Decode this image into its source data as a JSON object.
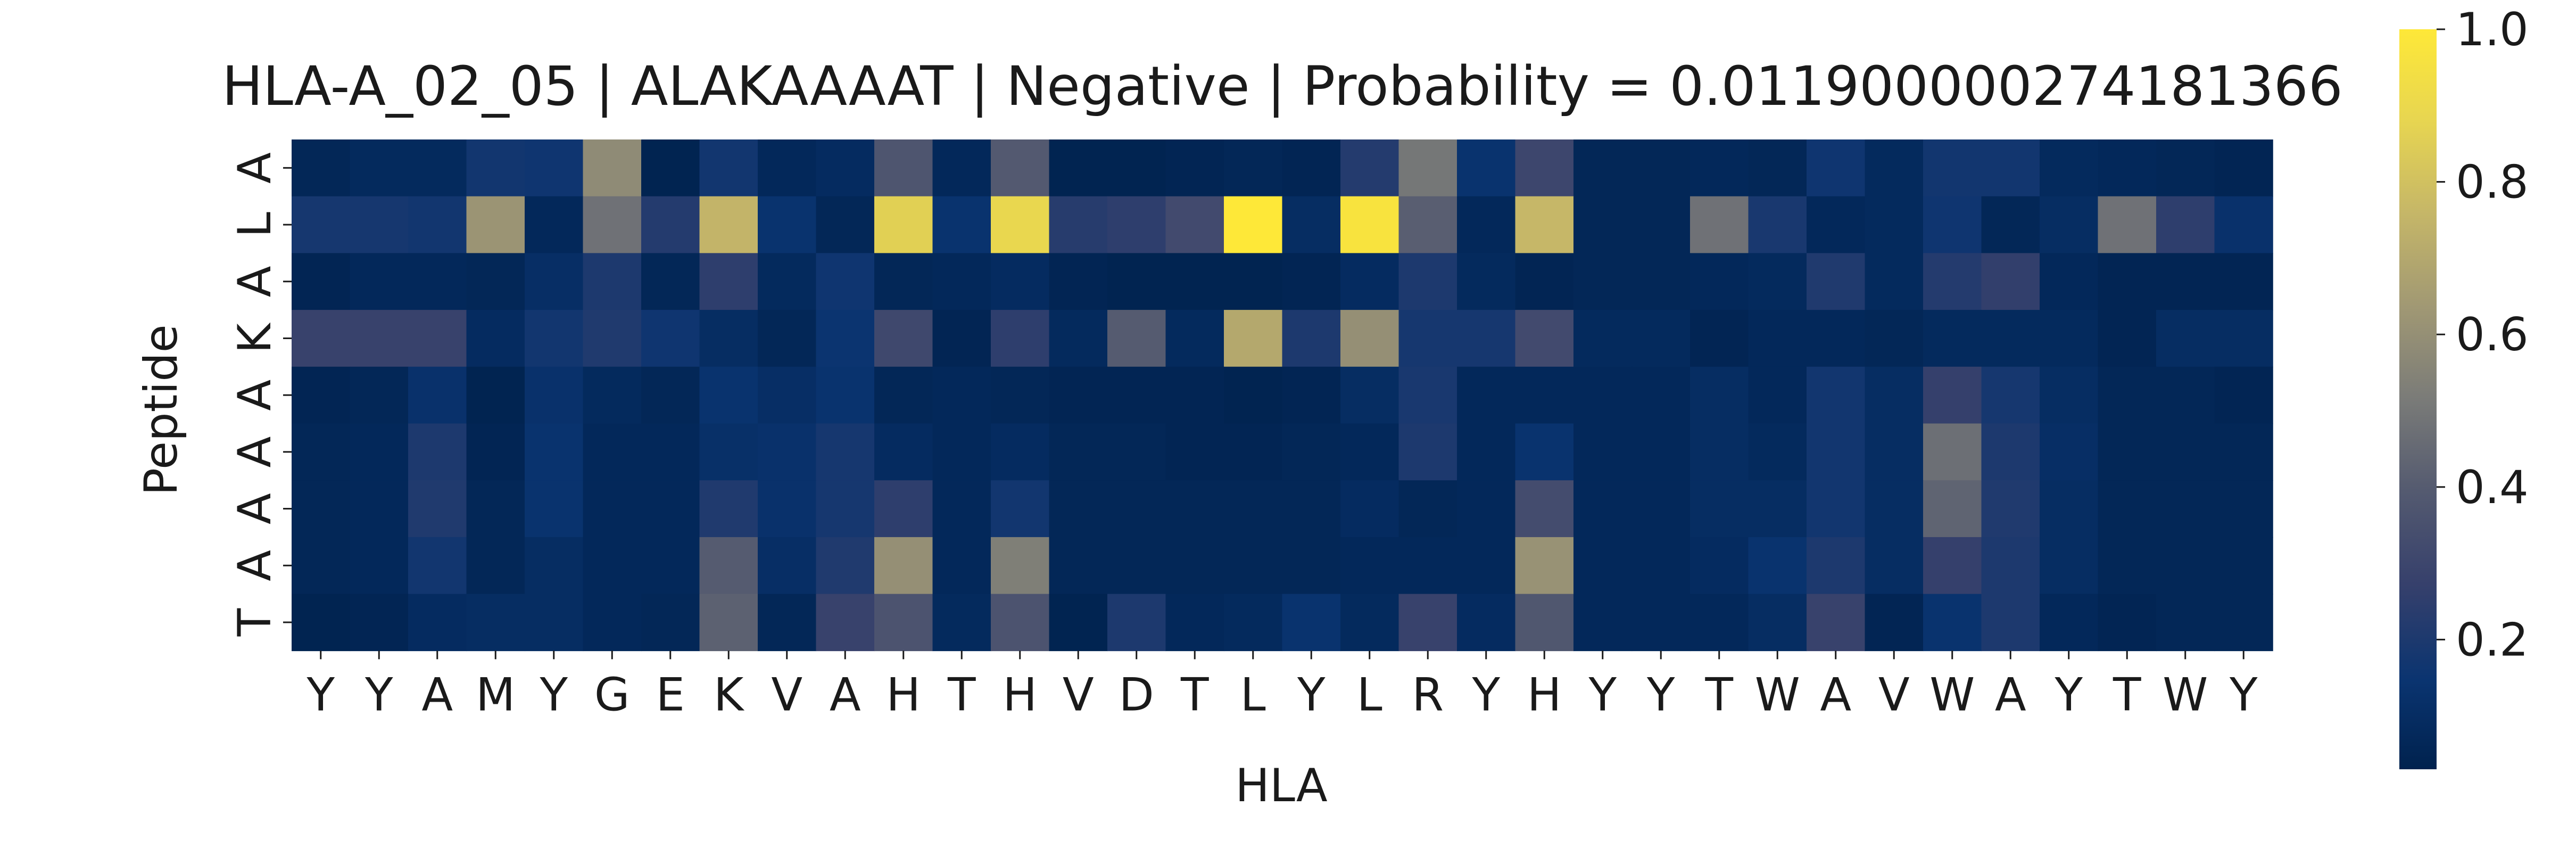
{
  "chart_data": {
    "type": "heatmap",
    "title": "HLA-A_02_05 | ALAKAAAAT | Negative | Probability = 0.011900000274181366",
    "xlabel": "HLA",
    "ylabel": "Peptide",
    "x_ticklabels": [
      "Y",
      "Y",
      "A",
      "M",
      "Y",
      "G",
      "E",
      "K",
      "V",
      "A",
      "H",
      "T",
      "H",
      "V",
      "D",
      "T",
      "L",
      "Y",
      "L",
      "R",
      "Y",
      "H",
      "Y",
      "Y",
      "T",
      "W",
      "A",
      "V",
      "W",
      "A",
      "Y",
      "T",
      "W",
      "Y"
    ],
    "y_ticklabels": [
      "A",
      "L",
      "A",
      "K",
      "A",
      "A",
      "A",
      "A",
      "T"
    ],
    "colormap": "cividis",
    "colorbar": {
      "min": 0.03,
      "max": 1.0,
      "ticks": [
        0.2,
        0.4,
        0.6,
        0.8,
        1.0
      ]
    },
    "values": [
      [
        0.06,
        0.08,
        0.08,
        0.17,
        0.16,
        0.58,
        0.04,
        0.17,
        0.07,
        0.09,
        0.37,
        0.07,
        0.39,
        0.04,
        0.04,
        0.05,
        0.06,
        0.05,
        0.22,
        0.5,
        0.14,
        0.3,
        0.06,
        0.06,
        0.07,
        0.06,
        0.16,
        0.08,
        0.17,
        0.17,
        0.08,
        0.07,
        0.06,
        0.05
      ],
      [
        0.18,
        0.18,
        0.17,
        0.62,
        0.07,
        0.48,
        0.22,
        0.75,
        0.14,
        0.06,
        0.86,
        0.14,
        0.89,
        0.23,
        0.25,
        0.32,
        1.0,
        0.1,
        0.97,
        0.41,
        0.07,
        0.76,
        0.06,
        0.06,
        0.48,
        0.19,
        0.07,
        0.08,
        0.16,
        0.06,
        0.1,
        0.48,
        0.25,
        0.13
      ],
      [
        0.05,
        0.07,
        0.07,
        0.06,
        0.11,
        0.2,
        0.06,
        0.25,
        0.08,
        0.16,
        0.06,
        0.07,
        0.09,
        0.05,
        0.04,
        0.04,
        0.04,
        0.05,
        0.09,
        0.2,
        0.08,
        0.05,
        0.06,
        0.06,
        0.07,
        0.08,
        0.21,
        0.08,
        0.22,
        0.26,
        0.07,
        0.05,
        0.05,
        0.05
      ],
      [
        0.28,
        0.28,
        0.28,
        0.09,
        0.17,
        0.21,
        0.16,
        0.1,
        0.06,
        0.15,
        0.31,
        0.05,
        0.25,
        0.08,
        0.4,
        0.08,
        0.7,
        0.2,
        0.6,
        0.18,
        0.18,
        0.32,
        0.08,
        0.08,
        0.05,
        0.07,
        0.07,
        0.06,
        0.08,
        0.08,
        0.08,
        0.05,
        0.1,
        0.1
      ],
      [
        0.05,
        0.06,
        0.13,
        0.04,
        0.13,
        0.08,
        0.06,
        0.14,
        0.11,
        0.14,
        0.06,
        0.07,
        0.06,
        0.05,
        0.05,
        0.05,
        0.04,
        0.05,
        0.1,
        0.19,
        0.07,
        0.07,
        0.07,
        0.07,
        0.1,
        0.07,
        0.17,
        0.1,
        0.27,
        0.18,
        0.1,
        0.06,
        0.06,
        0.05
      ],
      [
        0.06,
        0.07,
        0.2,
        0.05,
        0.14,
        0.07,
        0.07,
        0.12,
        0.13,
        0.18,
        0.09,
        0.07,
        0.09,
        0.06,
        0.06,
        0.05,
        0.05,
        0.06,
        0.07,
        0.2,
        0.07,
        0.14,
        0.07,
        0.07,
        0.1,
        0.08,
        0.17,
        0.1,
        0.47,
        0.2,
        0.11,
        0.06,
        0.06,
        0.06
      ],
      [
        0.06,
        0.07,
        0.21,
        0.06,
        0.14,
        0.07,
        0.07,
        0.21,
        0.13,
        0.18,
        0.25,
        0.07,
        0.17,
        0.06,
        0.06,
        0.06,
        0.06,
        0.06,
        0.09,
        0.06,
        0.07,
        0.33,
        0.07,
        0.07,
        0.1,
        0.1,
        0.17,
        0.1,
        0.43,
        0.21,
        0.1,
        0.06,
        0.06,
        0.06
      ],
      [
        0.06,
        0.07,
        0.17,
        0.06,
        0.1,
        0.07,
        0.07,
        0.4,
        0.11,
        0.21,
        0.6,
        0.07,
        0.53,
        0.06,
        0.06,
        0.06,
        0.06,
        0.06,
        0.07,
        0.07,
        0.07,
        0.61,
        0.07,
        0.07,
        0.09,
        0.14,
        0.2,
        0.1,
        0.27,
        0.2,
        0.1,
        0.06,
        0.06,
        0.06
      ],
      [
        0.04,
        0.05,
        0.09,
        0.1,
        0.1,
        0.07,
        0.06,
        0.42,
        0.06,
        0.28,
        0.36,
        0.08,
        0.36,
        0.04,
        0.2,
        0.07,
        0.08,
        0.14,
        0.08,
        0.28,
        0.09,
        0.38,
        0.07,
        0.07,
        0.07,
        0.1,
        0.28,
        0.05,
        0.14,
        0.2,
        0.07,
        0.05,
        0.06,
        0.06
      ]
    ]
  }
}
